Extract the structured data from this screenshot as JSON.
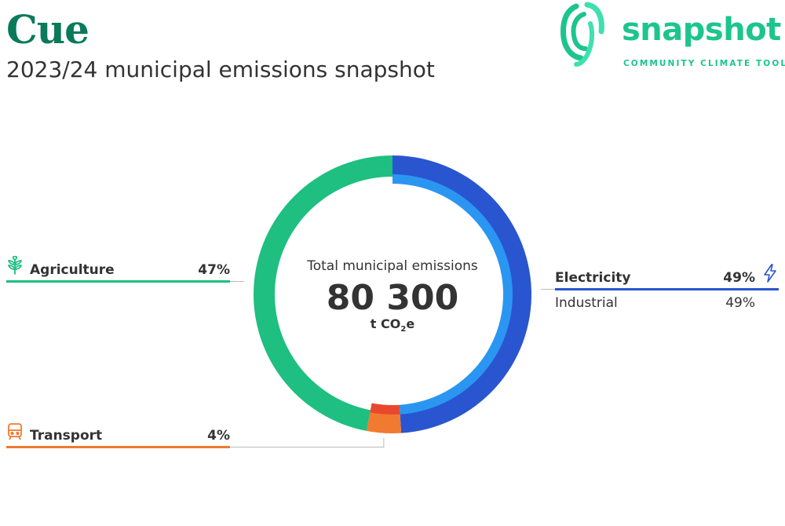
{
  "header": {
    "title": "Cue",
    "subtitle": "2023/24 municipal emissions snapshot"
  },
  "logo": {
    "wordmark": "snapshot",
    "tagline": "COMMUNITY CLIMATE TOOL",
    "color": "#1cc58b"
  },
  "chart_data": {
    "type": "pie",
    "total_caption": "Total municipal emissions",
    "total_value": "80 300",
    "total_unit_prefix": "t CO",
    "total_unit_subscript": "2",
    "total_unit_suffix": "e",
    "categories": [
      {
        "name": "Electricity",
        "percent_label": "49%",
        "value": 49,
        "color": "#2a55d0",
        "icon": "lightning-icon",
        "subcategories": [
          {
            "name": "Industrial",
            "percent_label": "49%",
            "value": 49,
            "color": "#2b96f2"
          }
        ]
      },
      {
        "name": "Transport",
        "percent_label": "4%",
        "value": 4,
        "color": "#f07a30",
        "icon": "train-icon",
        "subcategories": [
          {
            "name": "",
            "percent_label": "",
            "value": 4,
            "color": "#e8482e"
          }
        ]
      },
      {
        "name": "Agriculture",
        "percent_label": "47%",
        "value": 47,
        "color": "#1ebf80",
        "icon": "plant-icon",
        "subcategories": []
      }
    ]
  }
}
